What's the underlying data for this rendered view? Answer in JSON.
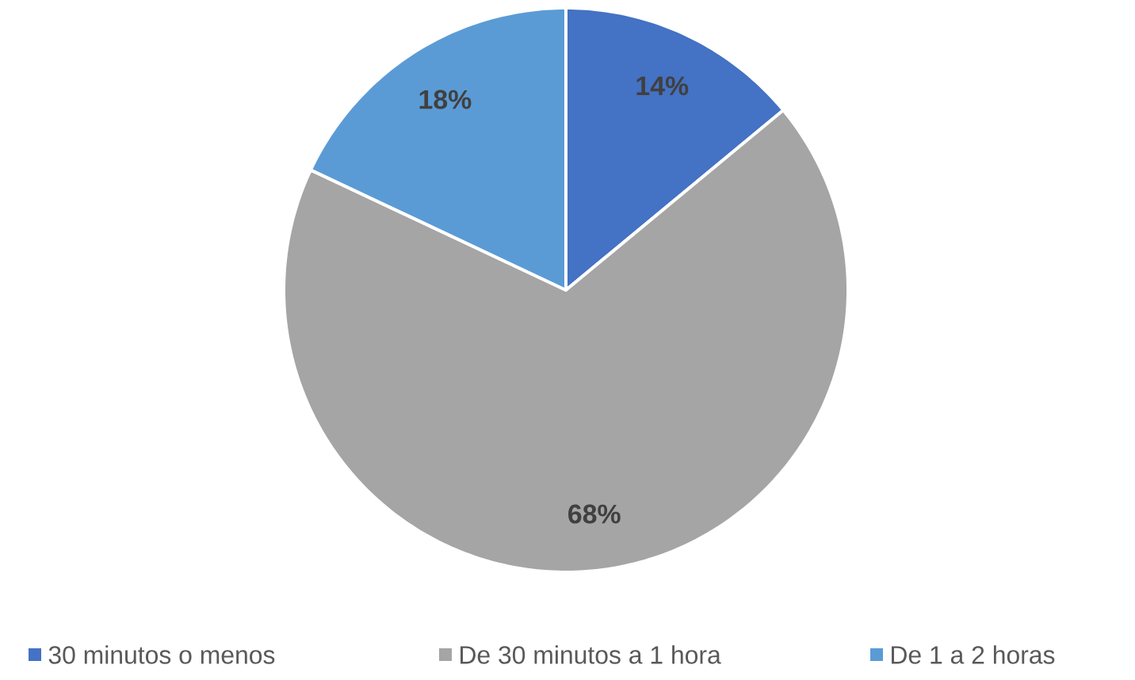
{
  "chart_data": {
    "type": "pie",
    "categories": [
      "30 minutos o menos",
      "De 30 minutos a 1 hora",
      "De 1 a 2 horas"
    ],
    "values": [
      14,
      68,
      18
    ],
    "colors": [
      "#4472c4",
      "#a5a5a5",
      "#5b9bd5"
    ],
    "value_labels": [
      "14%",
      "68%",
      "18%"
    ],
    "legend": "bottom"
  }
}
